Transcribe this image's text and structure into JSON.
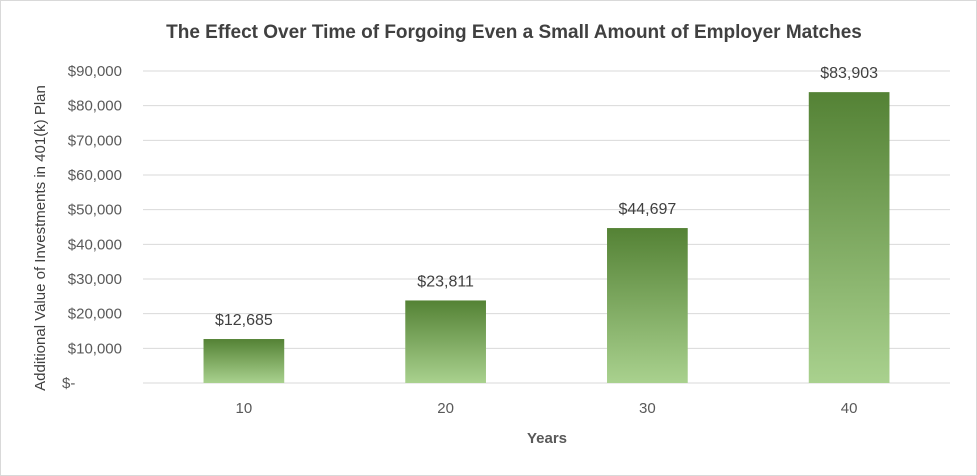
{
  "chart_data": {
    "type": "bar",
    "title": "The Effect Over Time of Forgoing Even a Small Amount of Employer Matches",
    "xlabel": "Years",
    "ylabel": "Additional Value of Investments in 401(k) Plan",
    "categories": [
      "10",
      "20",
      "30",
      "40"
    ],
    "values": [
      12685,
      23811,
      44697,
      83903
    ],
    "data_labels": [
      "$12,685",
      "$23,811",
      "$44,697",
      "$83,903"
    ],
    "ylim": [
      0,
      90000
    ],
    "yticks": [
      0,
      10000,
      20000,
      30000,
      40000,
      50000,
      60000,
      70000,
      80000,
      90000
    ],
    "ytick_labels": [
      "$-",
      "$10,000",
      "$20,000",
      "$30,000",
      "$40,000",
      "$50,000",
      "$60,000",
      "$70,000",
      "$80,000",
      "$90,000"
    ],
    "grid": true,
    "legend": "none",
    "colors": {
      "bar_top": "#548235",
      "bar_bottom": "#a9d18e",
      "grid": "#d9d9d9",
      "border": "#d9d9d9"
    }
  }
}
